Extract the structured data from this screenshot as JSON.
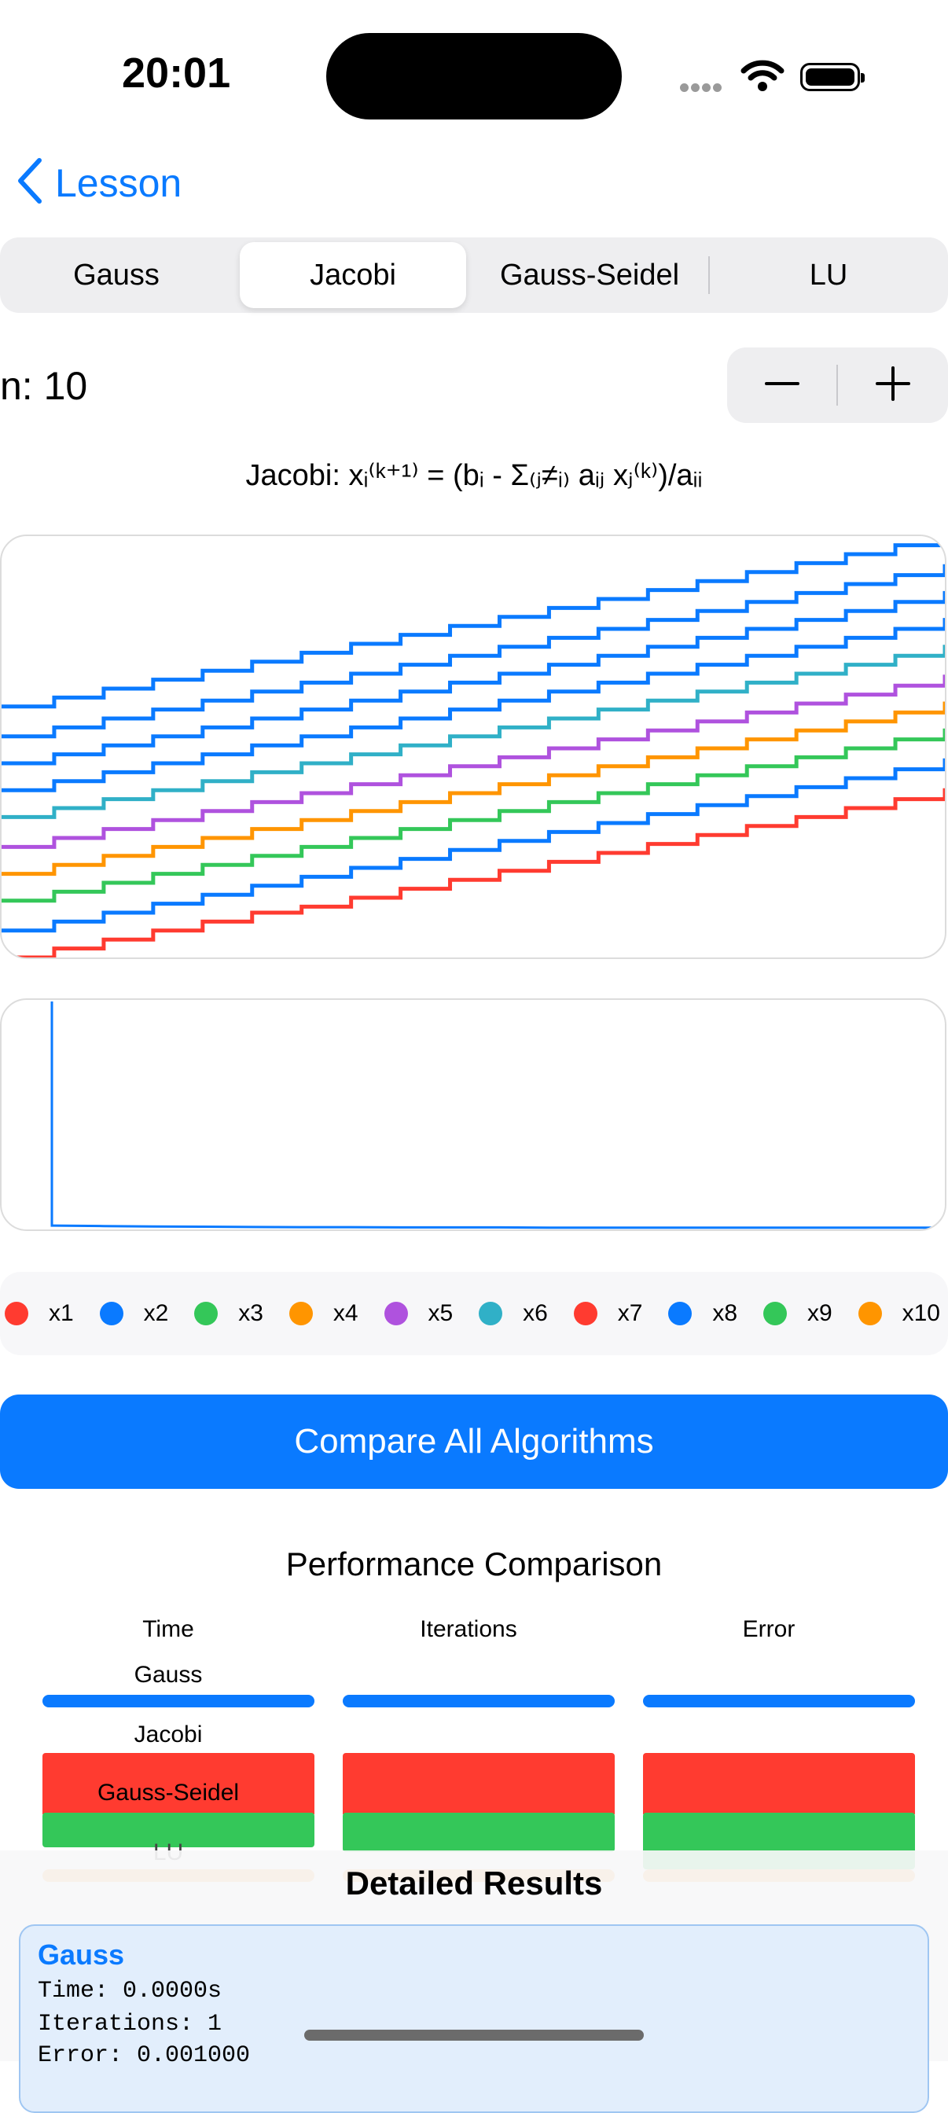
{
  "status": {
    "time": "20:01"
  },
  "nav": {
    "back_label": "Lesson"
  },
  "tabs": [
    {
      "label": "Gauss",
      "active": false
    },
    {
      "label": "Jacobi",
      "active": true
    },
    {
      "label": "Gauss-Seidel",
      "active": false
    },
    {
      "label": "LU",
      "active": false
    }
  ],
  "size": {
    "label": "n: 10"
  },
  "formula": "Jacobi: xᵢ⁽ᵏ⁺¹⁾ = (bᵢ - Σ₍ⱼ≠ᵢ₎ aᵢⱼ xⱼ⁽ᵏ⁾)/aᵢᵢ",
  "legend": [
    {
      "label": "x1",
      "color": "#ff3b30"
    },
    {
      "label": "x2",
      "color": "#0a7aff"
    },
    {
      "label": "x3",
      "color": "#34c759"
    },
    {
      "label": "x4",
      "color": "#ff9500"
    },
    {
      "label": "x5",
      "color": "#af52de"
    },
    {
      "label": "x6",
      "color": "#30b0c7"
    },
    {
      "label": "x7",
      "color": "#ff3b30"
    },
    {
      "label": "x8",
      "color": "#0a7aff"
    },
    {
      "label": "x9",
      "color": "#34c759"
    },
    {
      "label": "x10",
      "color": "#ff9500"
    }
  ],
  "compare_button": "Compare All Algorithms",
  "performance": {
    "title": "Performance Comparison",
    "columns": [
      "Time",
      "Iterations",
      "Error"
    ],
    "rows": [
      "Gauss",
      "Jacobi",
      "Gauss-Seidel",
      "LU"
    ],
    "colors": {
      "Gauss": "#0a7aff",
      "Gauss-Seidel": "#ff3b30",
      "Seidel-green": "#34c759",
      "LU": "#f7a840"
    }
  },
  "details": {
    "title": "Detailed Results",
    "first": {
      "name": "Gauss",
      "time": "Time: 0.0000s",
      "iterations": "Iterations: 1",
      "error": "Error: 0.001000"
    }
  },
  "chart_data": [
    {
      "type": "line",
      "title": "",
      "x": [
        0,
        1,
        2,
        3,
        4,
        5,
        6,
        7,
        8,
        9,
        10,
        11,
        12,
        13,
        14,
        15,
        16,
        17,
        18,
        19
      ],
      "series": [
        {
          "color": "#ff3b30",
          "values": [
            0.0,
            0.03,
            0.06,
            0.09,
            0.12,
            0.15,
            0.17,
            0.2,
            0.23,
            0.26,
            0.29,
            0.32,
            0.35,
            0.38,
            0.41,
            0.44,
            0.47,
            0.5,
            0.53,
            0.56
          ]
        },
        {
          "color": "#0a7aff",
          "values": [
            0.09,
            0.12,
            0.15,
            0.18,
            0.21,
            0.24,
            0.27,
            0.3,
            0.33,
            0.36,
            0.39,
            0.42,
            0.45,
            0.48,
            0.51,
            0.54,
            0.57,
            0.6,
            0.63,
            0.66
          ]
        },
        {
          "color": "#34c759",
          "values": [
            0.19,
            0.22,
            0.25,
            0.28,
            0.31,
            0.34,
            0.37,
            0.4,
            0.43,
            0.46,
            0.49,
            0.52,
            0.55,
            0.58,
            0.61,
            0.64,
            0.67,
            0.7,
            0.73,
            0.76
          ]
        },
        {
          "color": "#ff9500",
          "values": [
            0.28,
            0.31,
            0.34,
            0.37,
            0.4,
            0.43,
            0.46,
            0.49,
            0.52,
            0.55,
            0.58,
            0.61,
            0.64,
            0.67,
            0.7,
            0.73,
            0.76,
            0.79,
            0.82,
            0.85
          ]
        },
        {
          "color": "#af52de",
          "values": [
            0.37,
            0.4,
            0.43,
            0.46,
            0.49,
            0.52,
            0.55,
            0.58,
            0.61,
            0.64,
            0.67,
            0.7,
            0.73,
            0.76,
            0.79,
            0.82,
            0.85,
            0.88,
            0.91,
            0.94
          ]
        },
        {
          "color": "#30b0c7",
          "values": [
            0.47,
            0.5,
            0.53,
            0.56,
            0.59,
            0.62,
            0.65,
            0.68,
            0.71,
            0.74,
            0.77,
            0.8,
            0.83,
            0.86,
            0.89,
            0.92,
            0.95,
            0.98,
            1.01,
            1.04
          ]
        },
        {
          "color": "#0a7aff",
          "values": [
            0.56,
            0.59,
            0.62,
            0.65,
            0.68,
            0.71,
            0.74,
            0.77,
            0.8,
            0.83,
            0.86,
            0.89,
            0.92,
            0.95,
            0.98,
            1.01,
            1.04,
            1.07,
            1.1,
            1.13
          ]
        },
        {
          "color": "#0a7aff",
          "values": [
            0.65,
            0.68,
            0.71,
            0.74,
            0.77,
            0.8,
            0.83,
            0.86,
            0.89,
            0.92,
            0.95,
            0.98,
            1.01,
            1.04,
            1.07,
            1.1,
            1.13,
            1.16,
            1.19,
            1.22
          ]
        },
        {
          "color": "#0a7aff",
          "values": [
            0.74,
            0.77,
            0.8,
            0.83,
            0.86,
            0.89,
            0.92,
            0.95,
            0.98,
            1.01,
            1.04,
            1.07,
            1.1,
            1.13,
            1.16,
            1.19,
            1.22,
            1.25,
            1.28,
            1.31
          ]
        },
        {
          "color": "#0a7aff",
          "values": [
            0.84,
            0.87,
            0.9,
            0.93,
            0.96,
            0.99,
            1.02,
            1.05,
            1.08,
            1.11,
            1.14,
            1.17,
            1.2,
            1.23,
            1.26,
            1.29,
            1.32,
            1.35,
            1.38,
            1.41
          ]
        }
      ],
      "ylim": [
        0,
        1.4
      ]
    },
    {
      "type": "line",
      "title": "",
      "x": [
        0,
        1,
        2,
        3,
        4,
        5,
        6,
        7,
        8,
        9,
        10,
        11,
        12,
        13,
        14,
        15,
        16,
        17,
        18,
        19
      ],
      "series": [
        {
          "color": "#0a7aff",
          "values": [
            1.0,
            0.01,
            0.008,
            0.006,
            0.005,
            0.004,
            0.003,
            0.003,
            0.002,
            0.002,
            0.002,
            0.001,
            0.001,
            0.001,
            0.001,
            0.001,
            0.001,
            0.001,
            0.001,
            0.001
          ]
        }
      ],
      "ylim": [
        0,
        1.0
      ]
    }
  ]
}
